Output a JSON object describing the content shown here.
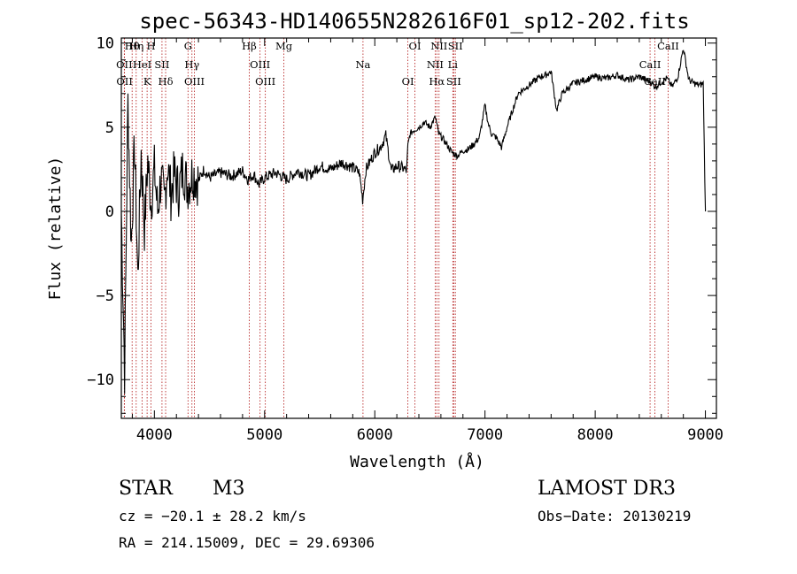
{
  "chart_data": {
    "type": "line",
    "title": "spec-56343-HD140655N282616F01_sp12-202.fits",
    "xlabel": "Wavelength (Å)",
    "ylabel": "Flux (relative)",
    "xlim": [
      3700,
      9100
    ],
    "ylim": [
      -12.3,
      10.3
    ],
    "x_ticks": [
      4000,
      5000,
      6000,
      7000,
      8000,
      9000
    ],
    "x_tick_labels": [
      "4000",
      "5000",
      "6000",
      "7000",
      "8000",
      "9000"
    ],
    "y_ticks": [
      -10,
      -5,
      0,
      5,
      10
    ],
    "y_tick_labels": [
      "−10",
      "−5",
      "0",
      "5",
      "10"
    ],
    "series": [
      {
        "name": "spectrum",
        "x": [
          3700,
          3730,
          3760,
          3790,
          3820,
          3850,
          3880,
          3910,
          3940,
          3970,
          4000,
          4030,
          4060,
          4090,
          4120,
          4150,
          4180,
          4220,
          4260,
          4300,
          4350,
          4400,
          4450,
          4500,
          4600,
          4700,
          4800,
          4850,
          4900,
          4950,
          5000,
          5100,
          5200,
          5300,
          5400,
          5500,
          5600,
          5700,
          5800,
          5860,
          5890,
          5920,
          5960,
          6000,
          6050,
          6100,
          6150,
          6200,
          6250,
          6290,
          6300,
          6320,
          6350,
          6400,
          6450,
          6500,
          6550,
          6580,
          6620,
          6650,
          6700,
          6750,
          6800,
          6850,
          6900,
          6950,
          7000,
          7030,
          7060,
          7100,
          7150,
          7200,
          7250,
          7300,
          7400,
          7500,
          7550,
          7600,
          7650,
          7700,
          7800,
          7900,
          8000,
          8100,
          8200,
          8300,
          8400,
          8500,
          8550,
          8600,
          8650,
          8700,
          8750,
          8800,
          8850,
          8900,
          8950,
          8980,
          9000
        ],
        "values": [
          0.0,
          -9.5,
          6.5,
          -2.0,
          4.0,
          -4.0,
          3.5,
          -1.0,
          3.0,
          0.5,
          2.5,
          0.0,
          2.0,
          0.5,
          2.8,
          1.0,
          2.2,
          1.2,
          2.6,
          1.5,
          2.3,
          1.8,
          2.5,
          2.0,
          2.3,
          2.1,
          2.4,
          1.9,
          2.2,
          1.6,
          2.0,
          2.3,
          1.9,
          2.4,
          2.1,
          2.7,
          2.5,
          2.9,
          2.6,
          2.3,
          0.7,
          2.5,
          3.0,
          3.5,
          3.8,
          4.5,
          2.4,
          2.7,
          2.6,
          2.4,
          3.9,
          4.6,
          4.8,
          5.0,
          5.3,
          5.0,
          5.6,
          4.6,
          4.3,
          4.0,
          3.5,
          3.3,
          3.6,
          3.7,
          4.0,
          4.4,
          6.3,
          5.2,
          4.6,
          4.4,
          3.8,
          5.0,
          6.0,
          7.0,
          7.5,
          8.0,
          8.1,
          8.3,
          6.0,
          7.0,
          7.6,
          7.8,
          8.0,
          7.9,
          8.1,
          7.8,
          8.0,
          7.7,
          7.4,
          7.7,
          7.9,
          7.4,
          8.0,
          9.7,
          7.8,
          7.6,
          7.5,
          7.6,
          0.0
        ]
      }
    ],
    "line_marks": [
      {
        "label": "Hθ",
        "wave": 3798
      },
      {
        "label": "OII",
        "wave": 3727
      },
      {
        "label": "OII",
        "wave": 3729
      },
      {
        "label": "Hη",
        "wave": 3835
      },
      {
        "label": "HeI",
        "wave": 3889
      },
      {
        "label": "K",
        "wave": 3934
      },
      {
        "label": "H",
        "wave": 3969
      },
      {
        "label": "SII",
        "wave": 4069
      },
      {
        "label": "Hδ",
        "wave": 4102
      },
      {
        "label": "G",
        "wave": 4305
      },
      {
        "label": "Hγ",
        "wave": 4341
      },
      {
        "label": "OIII",
        "wave": 4363
      },
      {
        "label": "Hβ",
        "wave": 4861
      },
      {
        "label": "OIII",
        "wave": 4959
      },
      {
        "label": "OIII",
        "wave": 5007
      },
      {
        "label": "Mg",
        "wave": 5175
      },
      {
        "label": "Na",
        "wave": 5893
      },
      {
        "label": "OI",
        "wave": 6300
      },
      {
        "label": "OI",
        "wave": 6364
      },
      {
        "label": "NII",
        "wave": 6548
      },
      {
        "label": "Hα",
        "wave": 6563
      },
      {
        "label": "NII",
        "wave": 6583
      },
      {
        "label": "Li",
        "wave": 6708
      },
      {
        "label": "SII",
        "wave": 6716
      },
      {
        "label": "SII",
        "wave": 6731
      },
      {
        "label": "CaII",
        "wave": 8498
      },
      {
        "label": "CaII",
        "wave": 8542
      },
      {
        "label": "CaII",
        "wave": 8662
      }
    ]
  },
  "info": {
    "class_label": "STAR",
    "subclass": "M3",
    "survey": "LAMOST DR3",
    "redshift": "cz = −20.1 ± 28.2 km/s",
    "obs_date": "Obs−Date: 20130219",
    "coords": "RA = 214.15009, DEC =  29.69306"
  },
  "colors": {
    "spectrum": "#000000",
    "line_marks": "#b01010",
    "background": "#ffffff"
  }
}
